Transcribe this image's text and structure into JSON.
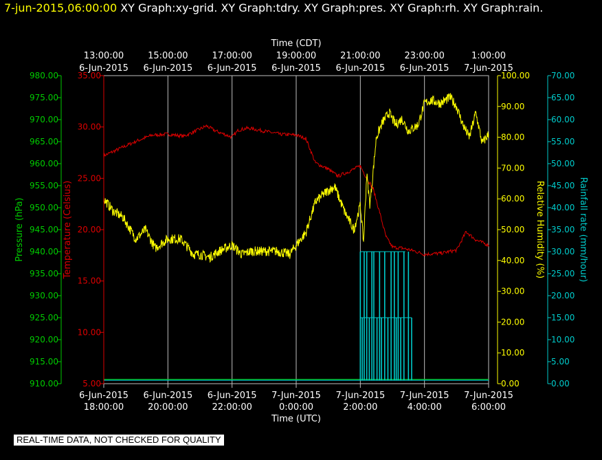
{
  "header": {
    "date_label": "7-jun-2015,06:00:00",
    "graph_list": "XY Graph:xy-grid.  XY Graph:tdry.  XY Graph:pres.  XY Graph:rh.  XY Graph:rain."
  },
  "disclaimer": "REAL-TIME DATA, NOT CHECKED FOR QUALITY",
  "colors": {
    "background": "#000000",
    "grid": "#c0c0c0",
    "pressure": "#00cc00",
    "temperature": "#dd0000",
    "humidity": "#ffff00",
    "rain": "#00cccc"
  },
  "chart_data": {
    "type": "line",
    "top_axis": {
      "label": "Time (CDT)",
      "ticks": [
        {
          "x": 0,
          "time": "13:00:00",
          "date": "6-Jun-2015"
        },
        {
          "x": 2,
          "time": "15:00:00",
          "date": "6-Jun-2015"
        },
        {
          "x": 4,
          "time": "17:00:00",
          "date": "6-Jun-2015"
        },
        {
          "x": 6,
          "time": "19:00:00",
          "date": "6-Jun-2015"
        },
        {
          "x": 8,
          "time": "21:00:00",
          "date": "6-Jun-2015"
        },
        {
          "x": 10,
          "time": "23:00:00",
          "date": "6-Jun-2015"
        },
        {
          "x": 12,
          "time": "1:00:00",
          "date": "7-Jun-2015"
        }
      ]
    },
    "bottom_axis": {
      "label": "Time (UTC)",
      "ticks": [
        {
          "x": 0,
          "date": "6-Jun-2015",
          "time": "18:00:00"
        },
        {
          "x": 2,
          "date": "6-Jun-2015",
          "time": "20:00:00"
        },
        {
          "x": 4,
          "date": "6-Jun-2015",
          "time": "22:00:00"
        },
        {
          "x": 6,
          "date": "7-Jun-2015",
          "time": "0:00:00"
        },
        {
          "x": 8,
          "date": "7-Jun-2015",
          "time": "2:00:00"
        },
        {
          "x": 10,
          "date": "7-Jun-2015",
          "time": "4:00:00"
        },
        {
          "x": 12,
          "date": "7-Jun-2015",
          "time": "6:00:00"
        }
      ]
    },
    "xlim": [
      0,
      12
    ],
    "grid": true,
    "axes": {
      "pressure": {
        "label": "Pressure (hPa)",
        "ylim": [
          910,
          980
        ],
        "ticks": [
          "910.00",
          "915.00",
          "920.00",
          "925.00",
          "930.00",
          "935.00",
          "940.00",
          "945.00",
          "950.00",
          "955.00",
          "960.00",
          "965.00",
          "970.00",
          "975.00",
          "980.00"
        ]
      },
      "temperature": {
        "label": "Temperature (Celsius)",
        "ylim": [
          5,
          35
        ],
        "ticks": [
          "5.00",
          "10.00",
          "15.00",
          "20.00",
          "25.00",
          "30.00",
          "35.00"
        ]
      },
      "humidity": {
        "label": "Relative Humidity (%)",
        "ylim": [
          0,
          100
        ],
        "ticks": [
          "0.00",
          "10.00",
          "20.00",
          "30.00",
          "40.00",
          "50.00",
          "60.00",
          "70.00",
          "80.00",
          "90.00",
          "100.00"
        ]
      },
      "rain": {
        "label": "Rainfall rate (mm/hour)",
        "ylim": [
          0,
          70
        ],
        "ticks": [
          "0.00",
          "5.00",
          "10.00",
          "15.00",
          "20.00",
          "25.00",
          "30.00",
          "35.00",
          "40.00",
          "45.00",
          "50.00",
          "55.00",
          "60.00",
          "65.00",
          "70.00"
        ]
      }
    },
    "series": [
      {
        "key": "temperature",
        "x": [
          0,
          0.5,
          1,
          1.5,
          2,
          2.5,
          3,
          3.2,
          3.5,
          4,
          4.2,
          4.5,
          5,
          5.5,
          6,
          6.3,
          6.6,
          7,
          7.3,
          7.6,
          8,
          8.2,
          8.4,
          8.6,
          8.8,
          9,
          9.3,
          9.6,
          10,
          10.5,
          11,
          11.3,
          11.6,
          12
        ],
        "y": [
          27.2,
          27.9,
          28.6,
          29.2,
          29.3,
          29.1,
          29.8,
          30.1,
          29.6,
          29.0,
          29.7,
          29.9,
          29.6,
          29.3,
          29.2,
          28.9,
          26.5,
          25.9,
          25.2,
          25.6,
          26.2,
          25.0,
          24.0,
          21.7,
          19.3,
          18.3,
          18.2,
          18.0,
          17.6,
          17.7,
          18.0,
          19.8,
          19.0,
          18.5
        ]
      },
      {
        "key": "humidity",
        "x": [
          0,
          0.3,
          0.6,
          1,
          1.3,
          1.6,
          2,
          2.4,
          2.8,
          3,
          3.3,
          3.6,
          4,
          4.3,
          4.6,
          5,
          5.4,
          5.8,
          6,
          6.3,
          6.6,
          6.9,
          7.2,
          7.5,
          7.8,
          8,
          8.1,
          8.2,
          8.3,
          8.5,
          8.7,
          8.9,
          9.1,
          9.3,
          9.5,
          9.8,
          10,
          10.2,
          10.5,
          10.8,
          11,
          11.2,
          11.4,
          11.6,
          11.8,
          12
        ],
        "y": [
          60,
          56,
          54,
          47,
          50,
          44,
          47,
          47,
          42,
          42,
          41,
          43,
          45,
          42,
          43,
          43,
          43,
          42,
          45,
          49,
          59,
          62,
          64,
          56,
          50,
          58,
          46,
          68,
          58,
          80,
          85,
          88,
          84,
          86,
          82,
          84,
          91,
          92,
          91,
          93,
          90,
          84,
          80,
          88,
          78,
          81
        ]
      },
      {
        "key": "pressure",
        "x": [
          0,
          12
        ],
        "y": [
          911,
          911
        ]
      }
    ],
    "rain_events": [
      {
        "x": 8.0,
        "rate": 30
      },
      {
        "x": 8.06,
        "rate": 15
      },
      {
        "x": 8.12,
        "rate": 30
      },
      {
        "x": 8.2,
        "rate": 30
      },
      {
        "x": 8.28,
        "rate": 15
      },
      {
        "x": 8.36,
        "rate": 30
      },
      {
        "x": 8.42,
        "rate": 30
      },
      {
        "x": 8.52,
        "rate": 15
      },
      {
        "x": 8.6,
        "rate": 30
      },
      {
        "x": 8.66,
        "rate": 15
      },
      {
        "x": 8.76,
        "rate": 30
      },
      {
        "x": 8.86,
        "rate": 15
      },
      {
        "x": 8.96,
        "rate": 30
      },
      {
        "x": 9.06,
        "rate": 30
      },
      {
        "x": 9.12,
        "rate": 15
      },
      {
        "x": 9.18,
        "rate": 30
      },
      {
        "x": 9.26,
        "rate": 15
      },
      {
        "x": 9.36,
        "rate": 30
      },
      {
        "x": 9.5,
        "rate": 30
      },
      {
        "x": 9.6,
        "rate": 15
      }
    ]
  }
}
